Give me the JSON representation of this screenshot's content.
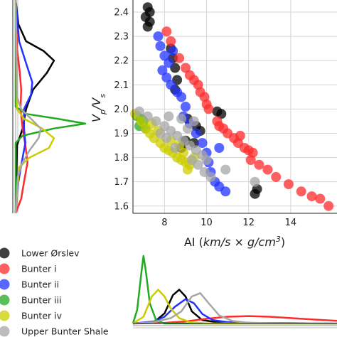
{
  "chart_data": [
    {
      "type": "scatter",
      "xlabel": "AI (km/s × g/cm³)",
      "xlabel_parts": [
        "AI (",
        "km/s × g/cm",
        "3",
        ")"
      ],
      "ylabel": "Vp/Vs",
      "ylabel_parts": [
        "V",
        "p",
        "/V",
        "s"
      ],
      "xlim": [
        6.5,
        16.2
      ],
      "ylim": [
        1.57,
        2.45
      ],
      "xticks": [
        "8",
        "10",
        "12",
        "14"
      ],
      "yticks": [
        "1.6",
        "1.7",
        "1.8",
        "1.9",
        "2.0",
        "2.1",
        "2.2",
        "2.3",
        "2.4"
      ],
      "grid": true,
      "series": [
        {
          "name": "Lower Ørslev",
          "color": "#000000",
          "points": [
            [
              7.2,
              2.42
            ],
            [
              7.3,
              2.4
            ],
            [
              7.1,
              2.38
            ],
            [
              7.3,
              2.36
            ],
            [
              7.2,
              2.34
            ],
            [
              8.3,
              2.25
            ],
            [
              8.4,
              2.21
            ],
            [
              8.5,
              2.17
            ],
            [
              8.6,
              2.12
            ],
            [
              8.5,
              2.08
            ],
            [
              9.5,
              1.93
            ],
            [
              9.7,
              1.91
            ],
            [
              9.4,
              1.86
            ],
            [
              10.5,
              1.99
            ],
            [
              10.7,
              1.98
            ],
            [
              9.0,
              1.87
            ],
            [
              8.8,
              1.84
            ],
            [
              12.4,
              1.67
            ],
            [
              12.3,
              1.65
            ],
            [
              9.1,
              1.96
            ]
          ]
        },
        {
          "name": "Bunter i",
          "color": "#ff2a2a",
          "points": [
            [
              8.1,
              2.32
            ],
            [
              8.3,
              2.28
            ],
            [
              8.7,
              2.21
            ],
            [
              9.0,
              2.17
            ],
            [
              9.2,
              2.14
            ],
            [
              9.6,
              2.1
            ],
            [
              9.7,
              2.07
            ],
            [
              9.9,
              2.05
            ],
            [
              10.0,
              2.02
            ],
            [
              10.1,
              2.0
            ],
            [
              10.5,
              1.95
            ],
            [
              10.6,
              1.93
            ],
            [
              11.0,
              1.9
            ],
            [
              11.3,
              1.88
            ],
            [
              11.5,
              1.86
            ],
            [
              11.8,
              1.84
            ],
            [
              12.0,
              1.83
            ],
            [
              12.2,
              1.82
            ],
            [
              12.1,
              1.79
            ],
            [
              12.5,
              1.77
            ],
            [
              12.9,
              1.75
            ],
            [
              13.3,
              1.72
            ],
            [
              13.9,
              1.69
            ],
            [
              14.5,
              1.66
            ],
            [
              15.0,
              1.64
            ],
            [
              15.4,
              1.63
            ],
            [
              15.8,
              1.6
            ],
            [
              11.6,
              1.89
            ],
            [
              10.8,
              1.92
            ],
            [
              9.4,
              2.12
            ]
          ]
        },
        {
          "name": "Bunter ii",
          "color": "#2233ff",
          "points": [
            [
              7.7,
              2.3
            ],
            [
              7.8,
              2.26
            ],
            [
              8.0,
              2.22
            ],
            [
              8.2,
              2.19
            ],
            [
              7.9,
              2.16
            ],
            [
              8.1,
              2.13
            ],
            [
              8.3,
              2.1
            ],
            [
              8.6,
              2.07
            ],
            [
              8.8,
              2.05
            ],
            [
              9.0,
              2.01
            ],
            [
              8.9,
              1.97
            ],
            [
              9.2,
              1.94
            ],
            [
              9.5,
              1.9
            ],
            [
              9.8,
              1.86
            ],
            [
              10.0,
              1.82
            ],
            [
              10.1,
              1.78
            ],
            [
              10.2,
              1.74
            ],
            [
              10.4,
              1.7
            ],
            [
              10.6,
              1.68
            ],
            [
              10.9,
              1.66
            ],
            [
              10.6,
              1.84
            ],
            [
              8.4,
              2.24
            ]
          ]
        },
        {
          "name": "Bunter iii",
          "color": "#22aa22",
          "points": [
            [
              6.7,
              1.97
            ],
            [
              6.9,
              1.96
            ],
            [
              7.0,
              1.95
            ],
            [
              6.8,
              1.93
            ],
            [
              7.1,
              1.92
            ]
          ]
        },
        {
          "name": "Bunter iv",
          "color": "#cccc00",
          "points": [
            [
              6.6,
              1.98
            ],
            [
              6.9,
              1.95
            ],
            [
              7.1,
              1.92
            ],
            [
              7.3,
              1.9
            ],
            [
              7.5,
              1.88
            ],
            [
              7.8,
              1.86
            ],
            [
              8.0,
              1.84
            ],
            [
              8.2,
              1.83
            ],
            [
              8.4,
              1.82
            ],
            [
              8.6,
              1.8
            ],
            [
              8.8,
              1.79
            ],
            [
              9.0,
              1.78
            ],
            [
              9.2,
              1.77
            ],
            [
              7.4,
              1.94
            ],
            [
              7.7,
              1.91
            ],
            [
              8.3,
              1.87
            ],
            [
              8.7,
              1.85
            ],
            [
              9.4,
              1.8
            ],
            [
              8.9,
              1.82
            ],
            [
              9.1,
              1.75
            ]
          ]
        },
        {
          "name": "Upper Bunter Shale",
          "color": "#a6a6a6",
          "points": [
            [
              6.8,
              1.99
            ],
            [
              7.2,
              1.97
            ],
            [
              7.6,
              1.95
            ],
            [
              8.0,
              1.93
            ],
            [
              8.3,
              1.91
            ],
            [
              8.6,
              1.89
            ],
            [
              8.9,
              1.87
            ],
            [
              9.2,
              1.85
            ],
            [
              9.5,
              1.83
            ],
            [
              9.8,
              1.81
            ],
            [
              10.0,
              1.79
            ],
            [
              9.6,
              1.77
            ],
            [
              9.9,
              1.74
            ],
            [
              8.1,
              1.88
            ],
            [
              8.5,
              1.84
            ],
            [
              9.1,
              1.92
            ],
            [
              9.4,
              1.95
            ],
            [
              8.8,
              1.96
            ],
            [
              7.8,
              1.9
            ],
            [
              10.2,
              1.72
            ],
            [
              10.9,
              1.75
            ],
            [
              12.3,
              1.7
            ],
            [
              9.3,
              1.79
            ],
            [
              8.2,
              1.97
            ]
          ]
        }
      ]
    },
    {
      "type": "line",
      "name": "AI distribution",
      "x_from_scatter": true,
      "series": [
        {
          "name": "Lower Ørslev",
          "color": "#000000",
          "x": [
            6.5,
            7.5,
            8.0,
            8.4,
            8.7,
            9.0,
            9.3,
            9.8,
            10.5,
            12.0,
            16.2
          ],
          "y": [
            0,
            0.02,
            0.15,
            0.42,
            0.5,
            0.4,
            0.18,
            0.05,
            0.02,
            0.01,
            0
          ]
        },
        {
          "name": "Bunter i",
          "color": "#ff2a2a",
          "x": [
            6.5,
            8.0,
            9.0,
            10.0,
            11.0,
            12.0,
            13.0,
            14.0,
            15.0,
            16.2
          ],
          "y": [
            0,
            0.01,
            0.03,
            0.07,
            0.1,
            0.11,
            0.1,
            0.08,
            0.06,
            0.04
          ]
        },
        {
          "name": "Bunter ii",
          "color": "#2233ff",
          "x": [
            6.5,
            7.5,
            8.0,
            8.5,
            9.0,
            9.4,
            9.8,
            10.3,
            11.0,
            12.0,
            16.2
          ],
          "y": [
            0,
            0.03,
            0.1,
            0.25,
            0.36,
            0.3,
            0.14,
            0.05,
            0.02,
            0.01,
            0
          ]
        },
        {
          "name": "Bunter iii",
          "color": "#22aa22",
          "x": [
            6.5,
            6.7,
            6.9,
            7.0,
            7.1,
            7.3,
            7.6,
            8.0,
            16.2
          ],
          "y": [
            0,
            0.2,
            0.75,
            1.0,
            0.8,
            0.3,
            0.05,
            0,
            0
          ]
        },
        {
          "name": "Bunter iv",
          "color": "#cccc00",
          "x": [
            6.5,
            7.0,
            7.4,
            7.7,
            8.0,
            8.3,
            8.7,
            9.2,
            10.0,
            16.2
          ],
          "y": [
            0,
            0.1,
            0.4,
            0.5,
            0.4,
            0.22,
            0.08,
            0.02,
            0,
            0
          ]
        },
        {
          "name": "Upper Bunter Shale",
          "color": "#a6a6a6",
          "x": [
            6.5,
            7.5,
            8.3,
            8.8,
            9.3,
            9.7,
            10.1,
            10.6,
            11.2,
            12.0,
            16.2
          ],
          "y": [
            0,
            0.02,
            0.08,
            0.18,
            0.4,
            0.45,
            0.3,
            0.12,
            0.04,
            0.01,
            0
          ]
        }
      ]
    },
    {
      "type": "line",
      "name": "Vp/Vs distribution",
      "y_from_scatter": true,
      "series": [
        {
          "name": "Lower Ørslev",
          "color": "#000000",
          "y": [
            1.57,
            1.85,
            1.92,
            2.0,
            2.08,
            2.15,
            2.2,
            2.24,
            2.28,
            2.35,
            2.45
          ],
          "x": [
            0,
            0.02,
            0.1,
            0.15,
            0.25,
            0.45,
            0.55,
            0.4,
            0.15,
            0.04,
            0
          ]
        },
        {
          "name": "Bunter i",
          "color": "#ff2a2a",
          "y": [
            1.57,
            1.63,
            1.7,
            1.78,
            1.85,
            1.92,
            2.0,
            2.08,
            2.15,
            2.25,
            2.45
          ],
          "x": [
            0,
            0.08,
            0.12,
            0.17,
            0.14,
            0.1,
            0.07,
            0.08,
            0.06,
            0.02,
            0
          ]
        },
        {
          "name": "Bunter ii",
          "color": "#2233ff",
          "y": [
            1.57,
            1.7,
            1.8,
            1.86,
            1.92,
            2.0,
            2.06,
            2.11,
            2.18,
            2.28,
            2.45
          ],
          "x": [
            0,
            0.04,
            0.1,
            0.14,
            0.12,
            0.12,
            0.22,
            0.24,
            0.16,
            0.05,
            0
          ]
        },
        {
          "name": "Bunter iii",
          "color": "#22aa22",
          "y": [
            1.57,
            1.86,
            1.89,
            1.92,
            1.94,
            1.96,
            1.98,
            2.01,
            2.45
          ],
          "x": [
            0,
            0,
            0.1,
            0.55,
            1.0,
            0.6,
            0.15,
            0,
            0
          ]
        },
        {
          "name": "Bunter iv",
          "color": "#cccc00",
          "y": [
            1.57,
            1.76,
            1.8,
            1.84,
            1.88,
            1.92,
            1.96,
            2.0,
            2.45
          ],
          "x": [
            0,
            0.05,
            0.2,
            0.48,
            0.55,
            0.38,
            0.12,
            0.02,
            0
          ]
        },
        {
          "name": "Upper Bunter Shale",
          "color": "#a6a6a6",
          "y": [
            1.57,
            1.72,
            1.78,
            1.83,
            1.88,
            1.92,
            1.96,
            2.0,
            2.05,
            2.45
          ],
          "x": [
            0,
            0.03,
            0.1,
            0.2,
            0.33,
            0.36,
            0.22,
            0.08,
            0.02,
            0
          ]
        }
      ]
    }
  ],
  "legend": {
    "placement": "bottom-left",
    "items": [
      {
        "label": "Lower Ørslev",
        "color": "#000000"
      },
      {
        "label": "Bunter i",
        "color": "#ff2a2a"
      },
      {
        "label": "Bunter ii",
        "color": "#2233ff"
      },
      {
        "label": "Bunter iii",
        "color": "#22aa22"
      },
      {
        "label": "Bunter iv",
        "color": "#cccc00"
      },
      {
        "label": "Upper Bunter Shale",
        "color": "#a6a6a6"
      }
    ]
  }
}
